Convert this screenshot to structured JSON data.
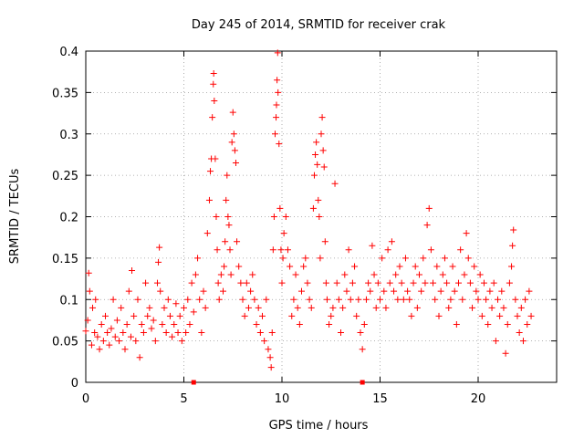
{
  "chart_data": {
    "type": "scatter",
    "title": "Day 245 of 2014, SRMTID for receiver crak",
    "xlabel": "GPS time / hours",
    "ylabel": "SRMTID / TECUs",
    "xlim": [
      0,
      24
    ],
    "ylim": [
      0,
      0.4
    ],
    "x_ticks": [
      0,
      5,
      10,
      15,
      20
    ],
    "x_tick_labels": [
      "0",
      "5",
      "10",
      "15",
      "20"
    ],
    "y_ticks": [
      0,
      0.05,
      0.1,
      0.15,
      0.2,
      0.25,
      0.3,
      0.35,
      0.4
    ],
    "y_tick_labels": [
      "0",
      "0.05",
      "0.1",
      "0.15",
      "0.2",
      "0.25",
      "0.3",
      "0.35",
      "0.4"
    ],
    "grid": true,
    "marker": "+",
    "color": "#ff0000",
    "series": [
      {
        "name": "SRMTID",
        "points": [
          [
            0.0,
            0.062
          ],
          [
            0.1,
            0.075
          ],
          [
            0.15,
            0.132
          ],
          [
            0.2,
            0.11
          ],
          [
            0.3,
            0.045
          ],
          [
            0.35,
            0.09
          ],
          [
            0.45,
            0.06
          ],
          [
            0.5,
            0.1
          ],
          [
            0.6,
            0.055
          ],
          [
            0.7,
            0.04
          ],
          [
            0.8,
            0.07
          ],
          [
            0.9,
            0.05
          ],
          [
            1.0,
            0.08
          ],
          [
            1.1,
            0.06
          ],
          [
            1.2,
            0.045
          ],
          [
            1.3,
            0.065
          ],
          [
            1.4,
            0.1
          ],
          [
            1.5,
            0.055
          ],
          [
            1.6,
            0.075
          ],
          [
            1.7,
            0.05
          ],
          [
            1.8,
            0.09
          ],
          [
            1.9,
            0.06
          ],
          [
            2.0,
            0.04
          ],
          [
            2.1,
            0.07
          ],
          [
            2.2,
            0.11
          ],
          [
            2.3,
            0.055
          ],
          [
            2.35,
            0.135
          ],
          [
            2.45,
            0.08
          ],
          [
            2.55,
            0.05
          ],
          [
            2.65,
            0.1
          ],
          [
            2.75,
            0.03
          ],
          [
            2.85,
            0.07
          ],
          [
            2.95,
            0.06
          ],
          [
            3.05,
            0.12
          ],
          [
            3.15,
            0.08
          ],
          [
            3.25,
            0.09
          ],
          [
            3.35,
            0.065
          ],
          [
            3.45,
            0.075
          ],
          [
            3.55,
            0.05
          ],
          [
            3.65,
            0.12
          ],
          [
            3.7,
            0.145
          ],
          [
            3.75,
            0.163
          ],
          [
            3.8,
            0.11
          ],
          [
            3.9,
            0.07
          ],
          [
            4.0,
            0.09
          ],
          [
            4.1,
            0.06
          ],
          [
            4.2,
            0.1
          ],
          [
            4.3,
            0.08
          ],
          [
            4.4,
            0.055
          ],
          [
            4.5,
            0.07
          ],
          [
            4.6,
            0.095
          ],
          [
            4.7,
            0.06
          ],
          [
            4.8,
            0.08
          ],
          [
            4.9,
            0.05
          ],
          [
            5.0,
            0.09
          ],
          [
            5.1,
            0.06
          ],
          [
            5.2,
            0.1
          ],
          [
            5.3,
            0.07
          ],
          [
            5.4,
            0.12
          ],
          [
            5.5,
            0.085
          ],
          [
            5.6,
            0.13
          ],
          [
            5.7,
            0.15
          ],
          [
            5.8,
            0.1
          ],
          [
            5.9,
            0.06
          ],
          [
            6.0,
            0.11
          ],
          [
            6.1,
            0.09
          ],
          [
            6.2,
            0.18
          ],
          [
            6.3,
            0.22
          ],
          [
            6.35,
            0.255
          ],
          [
            6.4,
            0.27
          ],
          [
            6.45,
            0.32
          ],
          [
            6.5,
            0.36
          ],
          [
            6.52,
            0.373
          ],
          [
            6.55,
            0.34
          ],
          [
            6.6,
            0.27
          ],
          [
            6.65,
            0.2
          ],
          [
            6.7,
            0.16
          ],
          [
            6.75,
            0.12
          ],
          [
            6.8,
            0.1
          ],
          [
            6.9,
            0.13
          ],
          [
            7.0,
            0.11
          ],
          [
            7.05,
            0.14
          ],
          [
            7.1,
            0.17
          ],
          [
            7.15,
            0.22
          ],
          [
            7.2,
            0.25
          ],
          [
            7.25,
            0.2
          ],
          [
            7.3,
            0.19
          ],
          [
            7.35,
            0.16
          ],
          [
            7.4,
            0.13
          ],
          [
            7.45,
            0.29
          ],
          [
            7.5,
            0.326
          ],
          [
            7.55,
            0.3
          ],
          [
            7.6,
            0.28
          ],
          [
            7.65,
            0.265
          ],
          [
            7.7,
            0.17
          ],
          [
            7.8,
            0.14
          ],
          [
            7.9,
            0.12
          ],
          [
            8.0,
            0.1
          ],
          [
            8.1,
            0.08
          ],
          [
            8.2,
            0.12
          ],
          [
            8.3,
            0.09
          ],
          [
            8.4,
            0.11
          ],
          [
            8.5,
            0.13
          ],
          [
            8.6,
            0.1
          ],
          [
            8.7,
            0.07
          ],
          [
            8.8,
            0.09
          ],
          [
            8.9,
            0.06
          ],
          [
            9.0,
            0.08
          ],
          [
            9.1,
            0.05
          ],
          [
            9.2,
            0.1
          ],
          [
            9.3,
            0.04
          ],
          [
            9.4,
            0.03
          ],
          [
            9.45,
            0.018
          ],
          [
            9.5,
            0.06
          ],
          [
            9.55,
            0.16
          ],
          [
            9.6,
            0.2
          ],
          [
            9.65,
            0.3
          ],
          [
            9.7,
            0.32
          ],
          [
            9.72,
            0.335
          ],
          [
            9.75,
            0.365
          ],
          [
            9.78,
            0.398
          ],
          [
            9.8,
            0.35
          ],
          [
            9.85,
            0.288
          ],
          [
            9.9,
            0.21
          ],
          [
            9.95,
            0.16
          ],
          [
            10.0,
            0.12
          ],
          [
            10.05,
            0.15
          ],
          [
            10.1,
            0.18
          ],
          [
            10.2,
            0.2
          ],
          [
            10.3,
            0.16
          ],
          [
            10.4,
            0.14
          ],
          [
            10.5,
            0.08
          ],
          [
            10.6,
            0.1
          ],
          [
            10.7,
            0.13
          ],
          [
            10.8,
            0.09
          ],
          [
            10.9,
            0.07
          ],
          [
            11.0,
            0.11
          ],
          [
            11.1,
            0.14
          ],
          [
            11.2,
            0.15
          ],
          [
            11.3,
            0.12
          ],
          [
            11.4,
            0.1
          ],
          [
            11.5,
            0.09
          ],
          [
            11.6,
            0.21
          ],
          [
            11.65,
            0.25
          ],
          [
            11.7,
            0.275
          ],
          [
            11.75,
            0.29
          ],
          [
            11.8,
            0.263
          ],
          [
            11.85,
            0.22
          ],
          [
            11.9,
            0.2
          ],
          [
            11.95,
            0.15
          ],
          [
            12.0,
            0.3
          ],
          [
            12.05,
            0.32
          ],
          [
            12.1,
            0.28
          ],
          [
            12.15,
            0.26
          ],
          [
            12.2,
            0.17
          ],
          [
            12.25,
            0.12
          ],
          [
            12.3,
            0.1
          ],
          [
            12.4,
            0.07
          ],
          [
            12.5,
            0.08
          ],
          [
            12.6,
            0.09
          ],
          [
            12.7,
            0.24
          ],
          [
            12.8,
            0.12
          ],
          [
            12.9,
            0.1
          ],
          [
            13.0,
            0.06
          ],
          [
            13.1,
            0.09
          ],
          [
            13.2,
            0.13
          ],
          [
            13.3,
            0.11
          ],
          [
            13.4,
            0.16
          ],
          [
            13.5,
            0.1
          ],
          [
            13.6,
            0.12
          ],
          [
            13.7,
            0.14
          ],
          [
            13.8,
            0.08
          ],
          [
            13.9,
            0.1
          ],
          [
            14.0,
            0.06
          ],
          [
            14.1,
            0.04
          ],
          [
            14.2,
            0.07
          ],
          [
            14.3,
            0.1
          ],
          [
            14.4,
            0.12
          ],
          [
            14.5,
            0.11
          ],
          [
            14.6,
            0.165
          ],
          [
            14.7,
            0.13
          ],
          [
            14.8,
            0.09
          ],
          [
            14.9,
            0.12
          ],
          [
            15.0,
            0.1
          ],
          [
            15.1,
            0.15
          ],
          [
            15.2,
            0.11
          ],
          [
            15.3,
            0.09
          ],
          [
            15.4,
            0.16
          ],
          [
            15.5,
            0.12
          ],
          [
            15.6,
            0.17
          ],
          [
            15.7,
            0.11
          ],
          [
            15.8,
            0.13
          ],
          [
            15.9,
            0.1
          ],
          [
            16.0,
            0.14
          ],
          [
            16.1,
            0.12
          ],
          [
            16.2,
            0.1
          ],
          [
            16.3,
            0.15
          ],
          [
            16.4,
            0.11
          ],
          [
            16.5,
            0.1
          ],
          [
            16.6,
            0.08
          ],
          [
            16.7,
            0.12
          ],
          [
            16.8,
            0.14
          ],
          [
            16.9,
            0.09
          ],
          [
            17.0,
            0.13
          ],
          [
            17.1,
            0.11
          ],
          [
            17.2,
            0.15
          ],
          [
            17.3,
            0.12
          ],
          [
            17.4,
            0.19
          ],
          [
            17.5,
            0.21
          ],
          [
            17.6,
            0.16
          ],
          [
            17.7,
            0.12
          ],
          [
            17.8,
            0.1
          ],
          [
            17.9,
            0.14
          ],
          [
            18.0,
            0.08
          ],
          [
            18.1,
            0.11
          ],
          [
            18.2,
            0.13
          ],
          [
            18.3,
            0.15
          ],
          [
            18.4,
            0.12
          ],
          [
            18.5,
            0.09
          ],
          [
            18.6,
            0.1
          ],
          [
            18.7,
            0.14
          ],
          [
            18.8,
            0.11
          ],
          [
            18.9,
            0.07
          ],
          [
            19.0,
            0.12
          ],
          [
            19.1,
            0.16
          ],
          [
            19.2,
            0.1
          ],
          [
            19.3,
            0.13
          ],
          [
            19.4,
            0.18
          ],
          [
            19.5,
            0.15
          ],
          [
            19.6,
            0.12
          ],
          [
            19.7,
            0.09
          ],
          [
            19.8,
            0.14
          ],
          [
            19.9,
            0.11
          ],
          [
            20.0,
            0.1
          ],
          [
            20.1,
            0.13
          ],
          [
            20.2,
            0.08
          ],
          [
            20.3,
            0.12
          ],
          [
            20.4,
            0.1
          ],
          [
            20.5,
            0.07
          ],
          [
            20.6,
            0.11
          ],
          [
            20.7,
            0.09
          ],
          [
            20.8,
            0.12
          ],
          [
            20.9,
            0.05
          ],
          [
            21.0,
            0.1
          ],
          [
            21.1,
            0.08
          ],
          [
            21.2,
            0.11
          ],
          [
            21.3,
            0.09
          ],
          [
            21.4,
            0.035
          ],
          [
            21.5,
            0.07
          ],
          [
            21.6,
            0.12
          ],
          [
            21.7,
            0.14
          ],
          [
            21.75,
            0.165
          ],
          [
            21.8,
            0.184
          ],
          [
            21.9,
            0.1
          ],
          [
            22.0,
            0.08
          ],
          [
            22.1,
            0.06
          ],
          [
            22.2,
            0.09
          ],
          [
            22.3,
            0.05
          ],
          [
            22.4,
            0.1
          ],
          [
            22.5,
            0.07
          ],
          [
            22.6,
            0.11
          ],
          [
            22.7,
            0.08
          ]
        ]
      }
    ],
    "axis_markers": [
      5.5,
      14.1
    ]
  }
}
